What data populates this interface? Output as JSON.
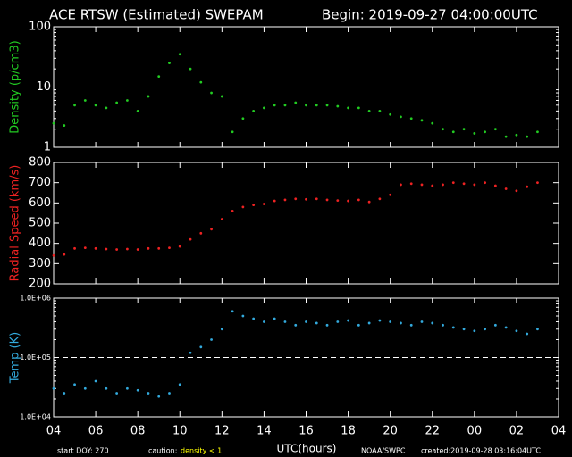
{
  "header": {
    "title": "ACE RTSW (Estimated) SWEPAM",
    "begin": "Begin: 2019-09-27 04:00:00UTC"
  },
  "footer": {
    "start": "start DOY: 270",
    "caution": "caution:",
    "caution_note": "density < 1",
    "xlabel": "UTC(hours)",
    "source": "NOAA/SWPC",
    "created": "created:2019-09-28 03:16:04UTC"
  },
  "chart_data": [
    {
      "type": "scatter",
      "ylabel": "Density (p/cm3)",
      "color": "#22cc22",
      "log_scale": true,
      "reference_line": 10,
      "xlim": [
        0,
        24
      ],
      "ylim": [
        1,
        100
      ],
      "yticks": [
        1,
        10,
        100
      ],
      "x": [
        0,
        0.5,
        1,
        1.5,
        2,
        2.5,
        3,
        3.5,
        4,
        4.5,
        5,
        5.5,
        6,
        6.5,
        7,
        7.5,
        8,
        8.5,
        9,
        9.5,
        10,
        10.5,
        11,
        11.5,
        12,
        12.5,
        13,
        13.5,
        14,
        14.5,
        15,
        15.5,
        16,
        16.5,
        17,
        17.5,
        18,
        18.5,
        19,
        19.5,
        20,
        20.5,
        21,
        21.5,
        22,
        22.5,
        23
      ],
      "values": [
        2.5,
        2.3,
        5,
        6,
        5,
        4.5,
        5.5,
        6,
        4,
        7,
        15,
        25,
        35,
        20,
        12,
        8,
        7,
        1.8,
        3,
        4,
        4.5,
        5,
        5,
        5.5,
        5,
        5,
        5,
        4.8,
        4.5,
        4.5,
        4,
        4,
        3.5,
        3.2,
        3,
        2.8,
        2.5,
        2,
        1.8,
        2,
        1.7,
        1.8,
        2,
        1.5,
        1.6,
        1.5,
        1.8
      ]
    },
    {
      "type": "scatter",
      "ylabel": "Radial Speed (km/s)",
      "color": "#ee2222",
      "log_scale": false,
      "xlim": [
        0,
        24
      ],
      "ylim": [
        200,
        800
      ],
      "yticks": [
        200,
        300,
        400,
        500,
        600,
        700,
        800
      ],
      "x": [
        0,
        0.5,
        1,
        1.5,
        2,
        2.5,
        3,
        3.5,
        4,
        4.5,
        5,
        5.5,
        6,
        6.5,
        7,
        7.5,
        8,
        8.5,
        9,
        9.5,
        10,
        10.5,
        11,
        11.5,
        12,
        12.5,
        13,
        13.5,
        14,
        14.5,
        15,
        15.5,
        16,
        16.5,
        17,
        17.5,
        18,
        18.5,
        19,
        19.5,
        20,
        20.5,
        21,
        21.5,
        22,
        22.5,
        23
      ],
      "values": [
        340,
        345,
        375,
        378,
        375,
        372,
        370,
        372,
        370,
        375,
        375,
        378,
        385,
        420,
        450,
        470,
        520,
        560,
        580,
        590,
        595,
        610,
        615,
        620,
        618,
        620,
        615,
        612,
        610,
        615,
        605,
        620,
        640,
        690,
        695,
        690,
        685,
        690,
        700,
        695,
        690,
        700,
        685,
        670,
        660,
        680,
        700
      ]
    },
    {
      "type": "scatter",
      "ylabel": "Temp (K)",
      "color": "#33aadd",
      "log_scale": true,
      "reference_line": 100000,
      "xlim": [
        0,
        24
      ],
      "ylim": [
        10000,
        1000000
      ],
      "yticks": [
        {
          "value": 10000,
          "label": "1.0E+04"
        },
        {
          "value": 100000,
          "label": "1.0E+05"
        },
        {
          "value": 1000000,
          "label": "1.0E+06"
        }
      ],
      "xticks": [
        {
          "value": 0,
          "label": "04"
        },
        {
          "value": 2,
          "label": "06"
        },
        {
          "value": 4,
          "label": "08"
        },
        {
          "value": 6,
          "label": "10"
        },
        {
          "value": 8,
          "label": "12"
        },
        {
          "value": 10,
          "label": "14"
        },
        {
          "value": 12,
          "label": "16"
        },
        {
          "value": 14,
          "label": "18"
        },
        {
          "value": 16,
          "label": "20"
        },
        {
          "value": 18,
          "label": "22"
        },
        {
          "value": 20,
          "label": "00"
        },
        {
          "value": 22,
          "label": "02"
        },
        {
          "value": 24,
          "label": "04"
        }
      ],
      "x": [
        0,
        0.5,
        1,
        1.5,
        2,
        2.5,
        3,
        3.5,
        4,
        4.5,
        5,
        5.5,
        6,
        6.5,
        7,
        7.5,
        8,
        8.5,
        9,
        9.5,
        10,
        10.5,
        11,
        11.5,
        12,
        12.5,
        13,
        13.5,
        14,
        14.5,
        15,
        15.5,
        16,
        16.5,
        17,
        17.5,
        18,
        18.5,
        19,
        19.5,
        20,
        20.5,
        21,
        21.5,
        22,
        22.5,
        23
      ],
      "values": [
        30000,
        25000,
        35000,
        30000,
        40000,
        30000,
        25000,
        30000,
        28000,
        25000,
        22000,
        25000,
        35000,
        120000,
        150000,
        200000,
        300000,
        600000,
        500000,
        450000,
        400000,
        450000,
        400000,
        350000,
        400000,
        380000,
        350000,
        400000,
        420000,
        350000,
        380000,
        420000,
        400000,
        380000,
        350000,
        400000,
        380000,
        350000,
        320000,
        300000,
        280000,
        300000,
        350000,
        320000,
        280000,
        250000,
        300000
      ]
    }
  ]
}
